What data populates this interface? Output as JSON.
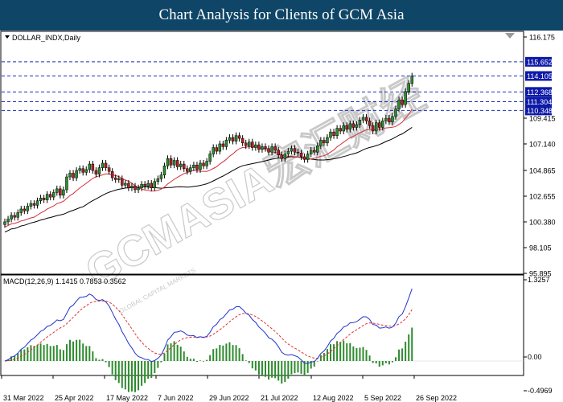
{
  "header": {
    "title": "Chart Analysis for Clients of GCM Asia"
  },
  "watermark": {
    "main": "GCMASIA宏汇财经",
    "sub": "GLOBAL CAPITAL MARKETS"
  },
  "colors": {
    "banner": "#0f4566",
    "level_line": "#1a2fb8",
    "level_box": "#0d1aa8",
    "ma_fast": "#d0303a",
    "ma_slow": "#000000",
    "macd_line": "#2233cc",
    "signal_line": "#e03030",
    "histogram": "#2e8b2e",
    "candle_bull": "#2e8b2e",
    "candle_bear": "#b22222"
  },
  "chart_data": [
    {
      "type": "candlestick",
      "symbol_label": "DOLLAR_INDX,Daily",
      "y_ticks": [
        "116.175",
        "109.415",
        "107.140",
        "104.865",
        "102.655",
        "100.380",
        "98.105",
        "95.895"
      ],
      "ylim": [
        95.895,
        116.175
      ],
      "x_ticks": [
        "31 Mar 2022",
        "25 Apr 2022",
        "17 May 2022",
        "7 Jun 2022",
        "29 Jun 2022",
        "21 Jul 2022",
        "12 Aug 2022",
        "5 Sep 2022",
        "26 Sep 2022"
      ],
      "levels": [
        {
          "label": "115.652",
          "value": 115.652
        },
        {
          "label": "114.105",
          "value": 114.105
        },
        {
          "label": "112.368",
          "value": 112.368
        },
        {
          "label": "111.304",
          "value": 111.304
        },
        {
          "label": "110.348",
          "value": 110.348
        }
      ],
      "closes": [
        98.2,
        98.5,
        98.9,
        98.7,
        99.2,
        99.6,
        99.4,
        99.9,
        100.2,
        100.0,
        100.5,
        100.8,
        100.6,
        101.2,
        100.9,
        101.4,
        101.8,
        101.1,
        101.7,
        103.1,
        103.5,
        103.0,
        103.8,
        104.0,
        103.6,
        103.9,
        104.5,
        103.8,
        103.4,
        104.1,
        104.6,
        104.1,
        103.7,
        103.0,
        102.8,
        102.9,
        102.2,
        102.4,
        101.9,
        102.1,
        101.7,
        101.9,
        102.3,
        102.1,
        102.4,
        101.9,
        102.6,
        102.9,
        103.3,
        104.3,
        105.1,
        104.4,
        104.9,
        104.2,
        104.5,
        104.0,
        103.7,
        104.1,
        104.4,
        103.9,
        104.6,
        104.3,
        104.8,
        105.6,
        106.3,
        105.9,
        106.7,
        106.4,
        107.1,
        107.4,
        107.0,
        107.6,
        107.3,
        106.8,
        106.5,
        106.9,
        106.3,
        106.6,
        106.1,
        106.4,
        106.2,
        105.8,
        106.4,
        106.0,
        105.5,
        105.1,
        105.6,
        105.9,
        106.2,
        105.8,
        105.7,
        105.3,
        105.0,
        105.6,
        106.0,
        105.8,
        106.5,
        107.1,
        106.8,
        107.4,
        108.0,
        107.6,
        108.4,
        108.1,
        108.7,
        108.3,
        108.9,
        108.5,
        108.8,
        109.3,
        109.6,
        109.2,
        108.7,
        108.1,
        109.0,
        108.5,
        109.2,
        109.5,
        109.1,
        109.7,
        110.5,
        111.5,
        111.0,
        112.4,
        113.3,
        114.1
      ]
    },
    {
      "type": "macd",
      "label": "MACD(12,26,9) 1.1415 0.7853 0.3562",
      "macd": 1.1415,
      "signal": 0.7853,
      "histogram": 0.3562,
      "y_ticks": [
        "1.3257",
        "0.00",
        "-0.4969"
      ],
      "ylim": [
        -0.4969,
        1.3257
      ]
    }
  ]
}
